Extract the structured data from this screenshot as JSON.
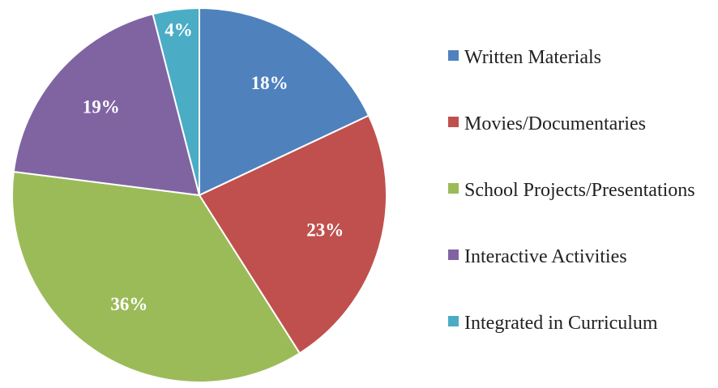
{
  "chart_data": {
    "type": "pie",
    "categories": [
      "Written Materials",
      "Movies/Documentaries",
      "School Projects/Presentations",
      "Interactive Activities",
      "Integrated in Curriculum"
    ],
    "values": [
      18,
      23,
      36,
      19,
      4
    ],
    "value_labels": [
      "18%",
      "23%",
      "36%",
      "19%",
      "4%"
    ],
    "colors": [
      "#4f81bd",
      "#c0504d",
      "#9bbb59",
      "#8064a2",
      "#4bacc6"
    ]
  }
}
